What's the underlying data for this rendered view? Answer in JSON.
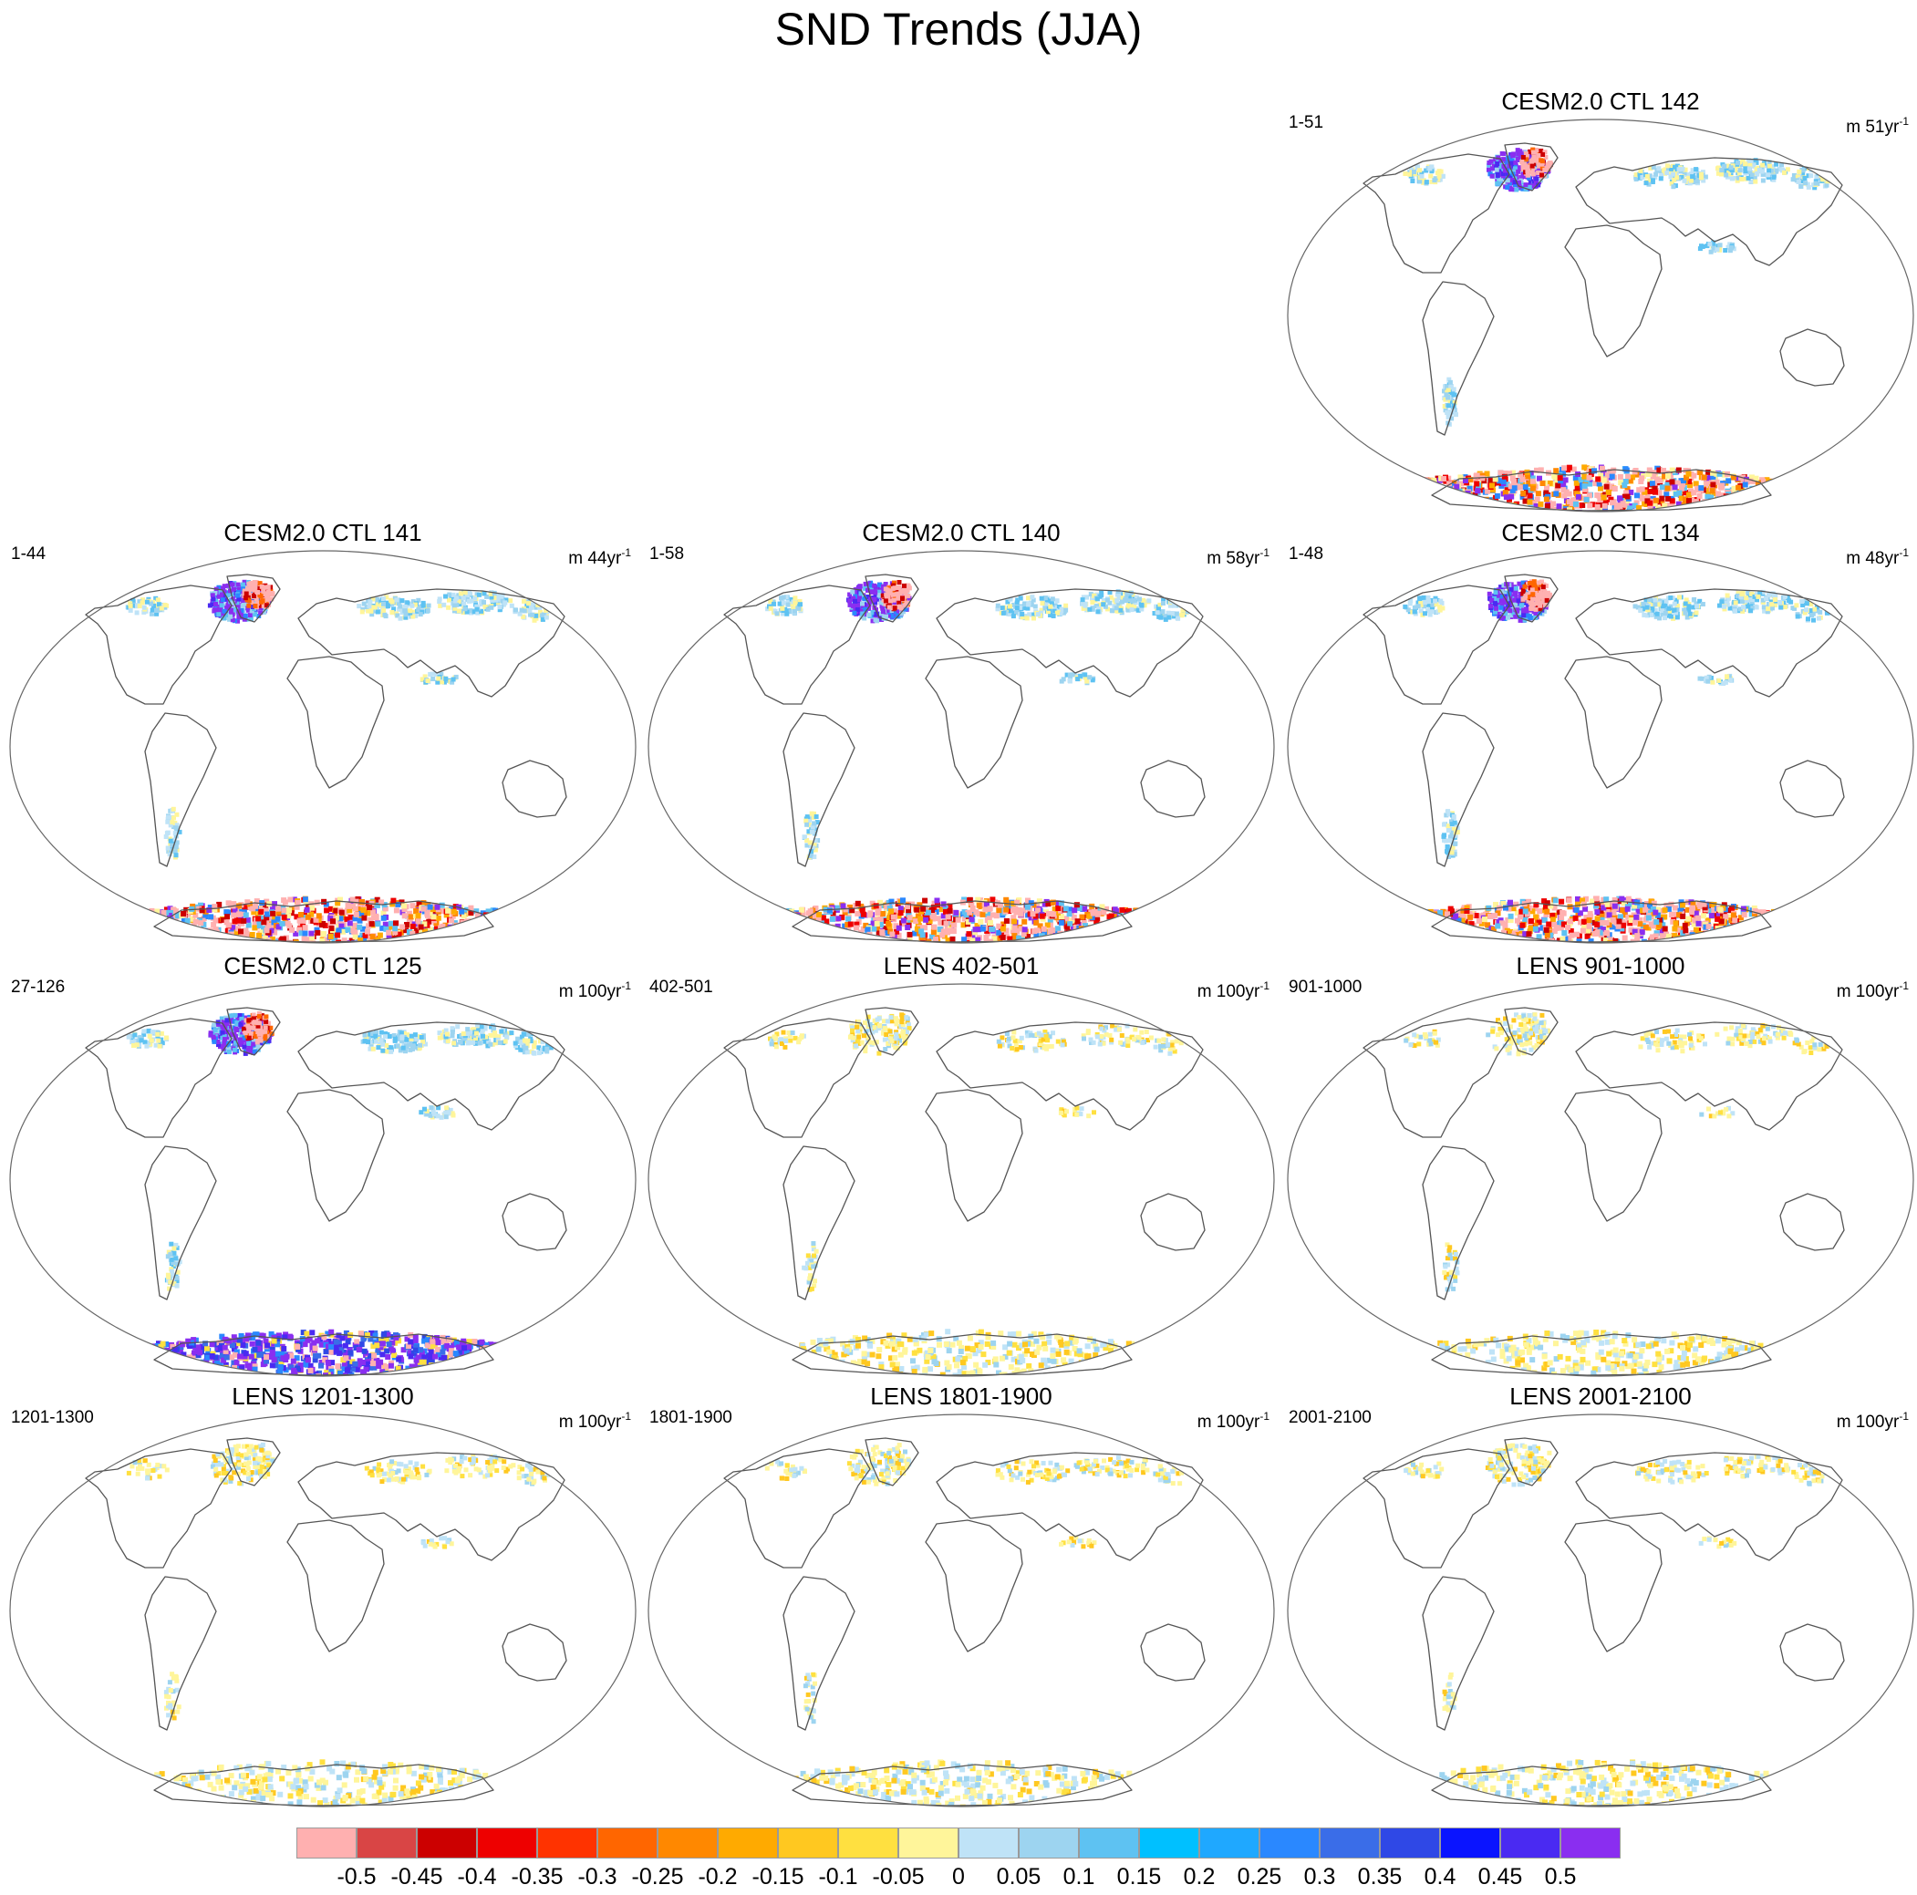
{
  "figure": {
    "title": "SND Trends (JJA)"
  },
  "chart_data": {
    "type": "heatmap",
    "title": "SND Trends (JJA)",
    "projection": "Robinson-like global map",
    "panels": [
      {
        "slot": 2,
        "title": "CESM2.0 CTL 142",
        "years": "1-51",
        "unit_prefix": "m 51yr",
        "unit_exp": "-1",
        "antarctica": "mixed",
        "north": "strong"
      },
      {
        "slot": 3,
        "title": "CESM2.0 CTL 141",
        "years": "1-44",
        "unit_prefix": "m 44yr",
        "unit_exp": "-1",
        "antarctica": "mixed",
        "north": "strong"
      },
      {
        "slot": 4,
        "title": "CESM2.0 CTL 140",
        "years": "1-58",
        "unit_prefix": "m 58yr",
        "unit_exp": "-1",
        "antarctica": "mixed",
        "north": "strong"
      },
      {
        "slot": 5,
        "title": "CESM2.0 CTL 134",
        "years": "1-48",
        "unit_prefix": "m 48yr",
        "unit_exp": "-1",
        "antarctica": "mixed",
        "north": "strong"
      },
      {
        "slot": 6,
        "title": "CESM2.0 CTL 125",
        "years": "27-126",
        "unit_prefix": "m 100yr",
        "unit_exp": "-1",
        "antarctica": "positive",
        "north": "strong"
      },
      {
        "slot": 7,
        "title": "LENS 402-501",
        "years": "402-501",
        "unit_prefix": "m 100yr",
        "unit_exp": "-1",
        "antarctica": "weak",
        "north": "weak"
      },
      {
        "slot": 8,
        "title": "LENS 901-1000",
        "years": "901-1000",
        "unit_prefix": "m 100yr",
        "unit_exp": "-1",
        "antarctica": "weak",
        "north": "weak"
      },
      {
        "slot": 9,
        "title": "LENS 1201-1300",
        "years": "1201-1300",
        "unit_prefix": "m 100yr",
        "unit_exp": "-1",
        "antarctica": "weak",
        "north": "weak"
      },
      {
        "slot": 10,
        "title": "LENS 1801-1900",
        "years": "1801-1900",
        "unit_prefix": "m 100yr",
        "unit_exp": "-1",
        "antarctica": "weak",
        "north": "weak"
      },
      {
        "slot": 11,
        "title": "LENS 2001-2100",
        "years": "2001-2100",
        "unit_prefix": "m 100yr",
        "unit_exp": "-1",
        "antarctica": "weak",
        "north": "weak"
      }
    ],
    "colorbar": {
      "labels": [
        "-0.5",
        "-0.45",
        "-0.4",
        "-0.35",
        "-0.3",
        "-0.25",
        "-0.2",
        "-0.15",
        "-0.1",
        "-0.05",
        "0",
        "0.05",
        "0.1",
        "0.15",
        "0.2",
        "0.25",
        "0.3",
        "0.35",
        "0.4",
        "0.45",
        "0.5"
      ],
      "colors": [
        "#ffb0b0",
        "#d94545",
        "#cc0000",
        "#ee0000",
        "#ff3300",
        "#ff6600",
        "#ff8800",
        "#ffaa00",
        "#ffc820",
        "#ffe040",
        "#fff59a",
        "#bfe3f7",
        "#9dd4f0",
        "#5ec2f2",
        "#00c0ff",
        "#1fa8ff",
        "#2a88ff",
        "#3a6de8",
        "#2f48e6",
        "#0a14ff",
        "#4a2af2",
        "#8a2ef0"
      ],
      "range": [
        -0.5,
        0.5
      ],
      "step": 0.05
    }
  }
}
